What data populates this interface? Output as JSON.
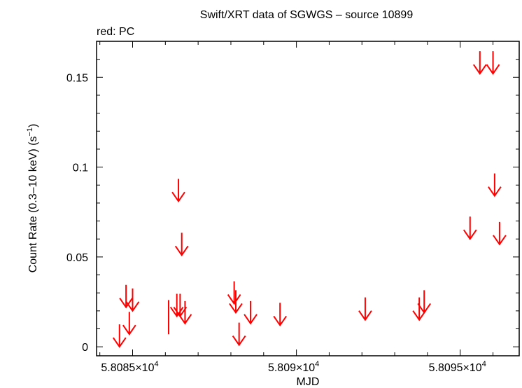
{
  "chart_data": {
    "type": "scatter",
    "title": "Swift/XRT data of SGWGS – source 10899",
    "subtitle": "red: PC",
    "xlabel": "MJD",
    "ylabel": "Count Rate (0.3–10 keV) (s",
    "ylabel_sup": "−1",
    "ylabel_end": ")",
    "xlim": [
      58083.9,
      58096.8
    ],
    "ylim": [
      -0.005,
      0.17
    ],
    "grid": false,
    "x_ticks": [
      {
        "value": 58085,
        "label": "5.8085×10",
        "sup": "4"
      },
      {
        "value": 58090,
        "label": "5.809×10",
        "sup": "4"
      },
      {
        "value": 58095,
        "label": "5.8095×10",
        "sup": "4"
      }
    ],
    "y_ticks": [
      {
        "value": 0,
        "label": "0"
      },
      {
        "value": 0.05,
        "label": "0.05"
      },
      {
        "value": 0.1,
        "label": "0.1"
      },
      {
        "value": 0.15,
        "label": "0.15"
      }
    ],
    "series": [
      {
        "color": "#ff0000",
        "marker": "upper-limit-arrow",
        "upper_limits": [
          {
            "x": 58084.6,
            "y": 0.0
          },
          {
            "x": 58084.8,
            "y": 0.022
          },
          {
            "x": 58084.9,
            "y": 0.007
          },
          {
            "x": 58085.0,
            "y": 0.02
          },
          {
            "x": 58086.4,
            "y": 0.081
          },
          {
            "x": 58086.5,
            "y": 0.051
          },
          {
            "x": 58086.35,
            "y": 0.017
          },
          {
            "x": 58086.45,
            "y": 0.017
          },
          {
            "x": 58086.6,
            "y": 0.013
          },
          {
            "x": 58088.1,
            "y": 0.024
          },
          {
            "x": 58088.15,
            "y": 0.019
          },
          {
            "x": 58088.25,
            "y": 0.001
          },
          {
            "x": 58088.6,
            "y": 0.013
          },
          {
            "x": 58089.5,
            "y": 0.012
          },
          {
            "x": 58092.1,
            "y": 0.015
          },
          {
            "x": 58093.75,
            "y": 0.015
          },
          {
            "x": 58093.9,
            "y": 0.019
          },
          {
            "x": 58095.3,
            "y": 0.06
          },
          {
            "x": 58095.6,
            "y": 0.152
          },
          {
            "x": 58096.0,
            "y": 0.152
          },
          {
            "x": 58096.05,
            "y": 0.084
          },
          {
            "x": 58096.2,
            "y": 0.057
          }
        ],
        "error_bars": [
          {
            "x": 58086.1,
            "ylow": 0.007,
            "yhigh": 0.026
          }
        ]
      }
    ]
  }
}
